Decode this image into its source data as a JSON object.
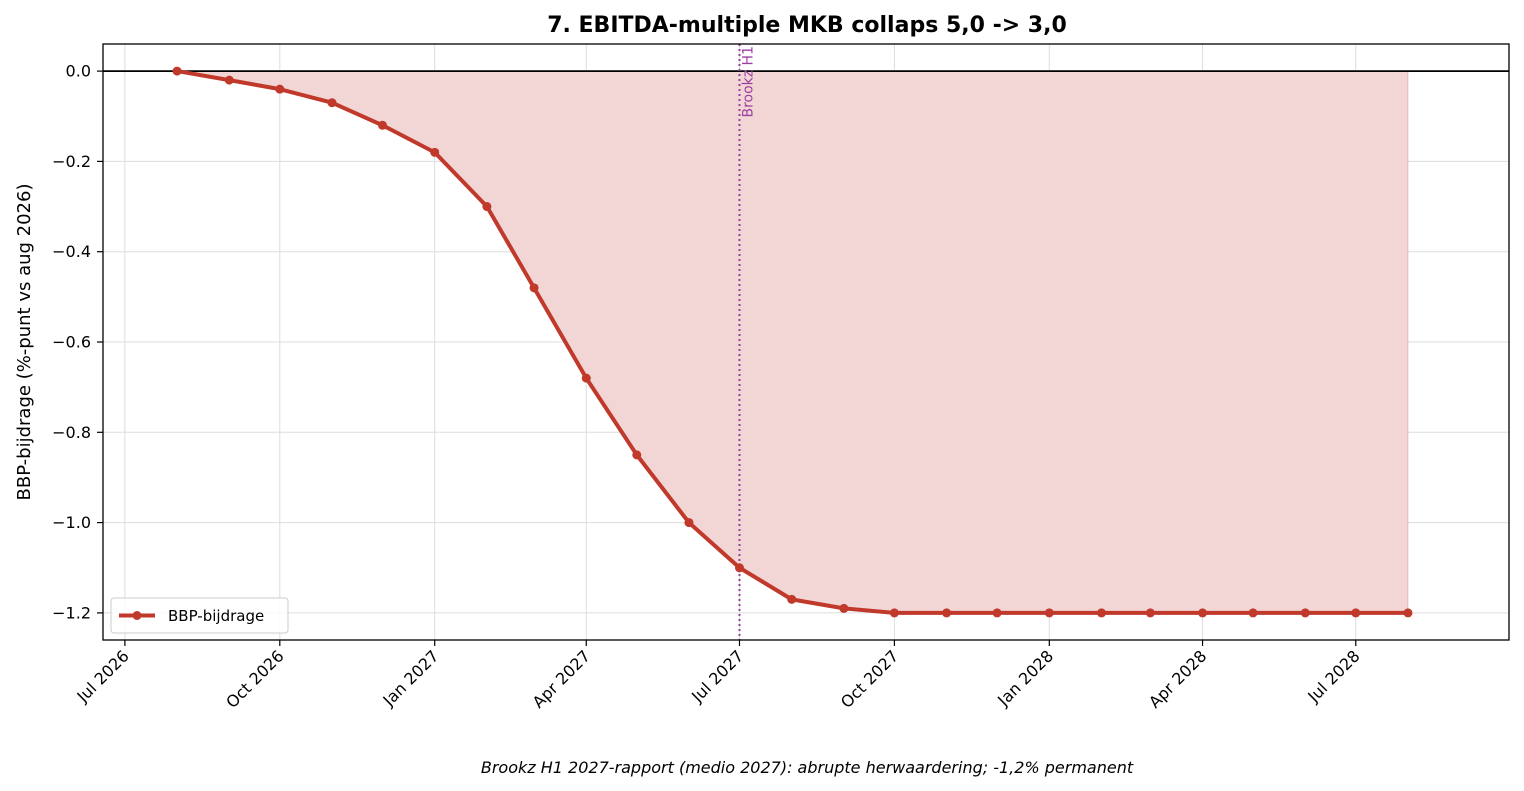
{
  "chart_data": {
    "type": "line",
    "title": "7. EBITDA-multiple MKB collaps 5,0 -> 3,0",
    "ylabel": "BBP-bijdrage (%-punt vs aug 2026)",
    "xlabel": "",
    "caption": "Brookz H1 2027-rapport (medio 2027): abrupte herwaardering; -1,2% permanent",
    "ylim": [
      -1.26,
      0.06
    ],
    "xlim": [
      "2026-06-18",
      "2028-09-30"
    ],
    "y_ticks": [
      0.0,
      -0.2,
      -0.4,
      -0.6,
      -0.8,
      -1.0,
      -1.2
    ],
    "y_tick_labels": [
      "0.0",
      "−0.2",
      "−0.4",
      "−0.6",
      "−0.8",
      "−1.0",
      "−1.2"
    ],
    "x_ticks": [
      "2026-07-01",
      "2026-10-01",
      "2027-01-01",
      "2027-04-01",
      "2027-07-01",
      "2027-10-01",
      "2028-01-01",
      "2028-04-01",
      "2028-07-01"
    ],
    "x_tick_labels": [
      "Jul 2026",
      "Oct 2026",
      "Jan 2027",
      "Apr 2027",
      "Jul 2027",
      "Oct 2027",
      "Jan 2028",
      "Apr 2028",
      "Jul 2028"
    ],
    "grid": true,
    "legend_position": "lower-left",
    "colors": {
      "line": "#c0392b",
      "fill": "#f2d6d5",
      "vline": "#9b3fa0",
      "zero_line": "#000000"
    },
    "series": [
      {
        "name": "BBP-bijdrage",
        "x": [
          "2026-08-01",
          "2026-09-01",
          "2026-10-01",
          "2026-11-01",
          "2026-12-01",
          "2027-01-01",
          "2027-02-01",
          "2027-03-01",
          "2027-04-01",
          "2027-05-01",
          "2027-06-01",
          "2027-07-01",
          "2027-08-01",
          "2027-09-01",
          "2027-10-01",
          "2027-11-01",
          "2027-12-01",
          "2028-01-01",
          "2028-02-01",
          "2028-03-01",
          "2028-04-01",
          "2028-05-01",
          "2028-06-01",
          "2028-07-01",
          "2028-08-01"
        ],
        "y": [
          0.0,
          -0.02,
          -0.04,
          -0.07,
          -0.12,
          -0.18,
          -0.3,
          -0.48,
          -0.68,
          -0.85,
          -1.0,
          -1.1,
          -1.17,
          -1.19,
          -1.2,
          -1.2,
          -1.2,
          -1.2,
          -1.2,
          -1.2,
          -1.2,
          -1.2,
          -1.2,
          -1.2,
          -1.2
        ]
      }
    ],
    "annotations": [
      {
        "type": "vline",
        "x": "2027-07-01",
        "label": "Brookz H1"
      }
    ]
  }
}
